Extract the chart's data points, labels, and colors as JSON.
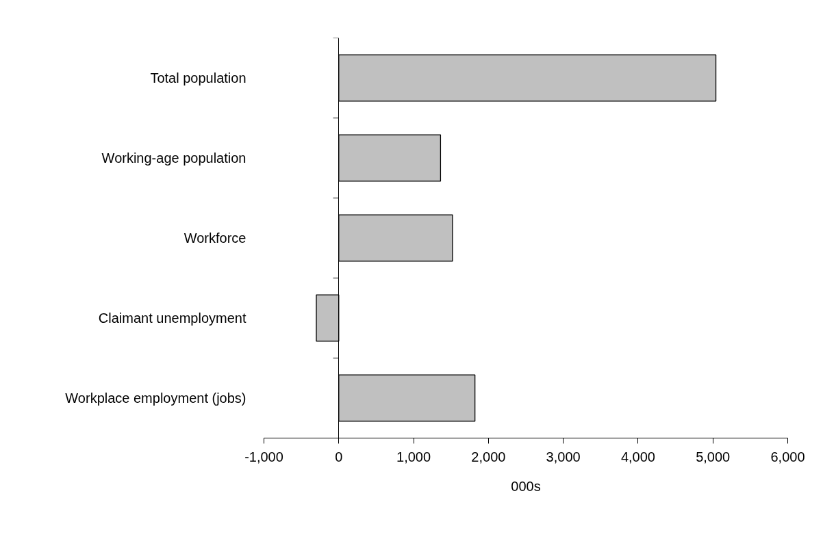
{
  "chart_data": {
    "type": "bar",
    "orientation": "horizontal",
    "xlabel": "000s",
    "categories": [
      "Total population",
      "Working-age population",
      "Workforce",
      "Claimant unemployment",
      "Workplace employment (jobs)"
    ],
    "values": [
      5040,
      1360,
      1520,
      -300,
      1820
    ],
    "color": "#c0c0c0",
    "xlim": [
      -1000,
      6000
    ],
    "xticks": [
      {
        "value": -1000,
        "label": "-1,000"
      },
      0,
      {
        "value": 1000,
        "label": "1,000"
      },
      {
        "value": 2000,
        "label": "2,000"
      },
      {
        "value": 3000,
        "label": "3,000"
      },
      {
        "value": 4000,
        "label": "4,000"
      },
      {
        "value": 5000,
        "label": "5,000"
      },
      {
        "value": 6000,
        "label": "6,000"
      }
    ]
  }
}
